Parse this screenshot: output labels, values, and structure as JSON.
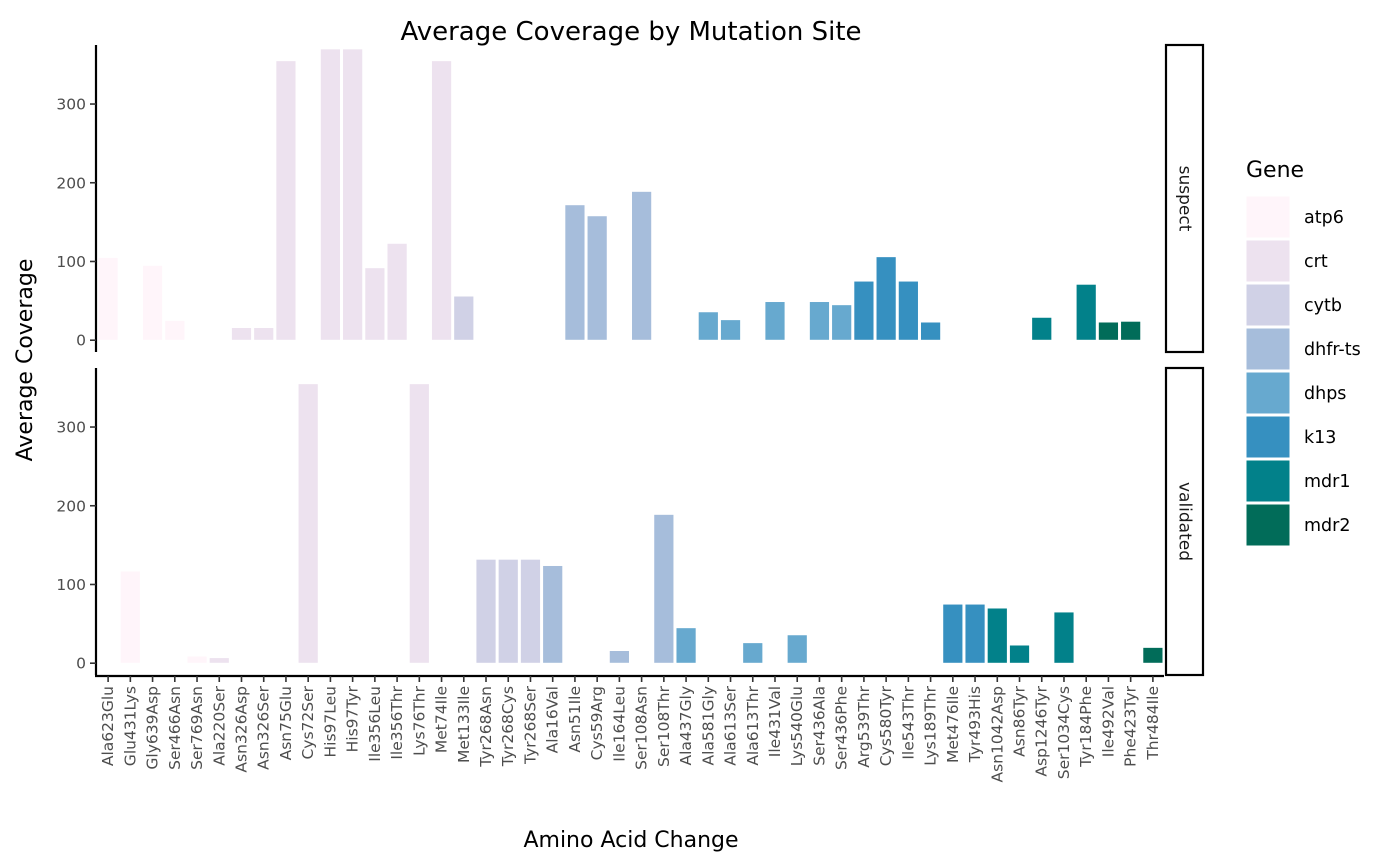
{
  "chart_data": {
    "type": "bar",
    "title": "Average Coverage by Mutation Site",
    "xlabel": "Amino Acid Change",
    "ylabel": "Average Coverage",
    "ylim": [
      -15,
      375
    ],
    "yticks": [
      0,
      100,
      200,
      300
    ],
    "grid": false,
    "legend": {
      "title": "Gene",
      "placement": "right",
      "entries": [
        {
          "name": "atp6",
          "color": "#fff5fa"
        },
        {
          "name": "crt",
          "color": "#ede2ef"
        },
        {
          "name": "cytb",
          "color": "#d0d1e6"
        },
        {
          "name": "dhfr-ts",
          "color": "#a6bddb"
        },
        {
          "name": "dhps",
          "color": "#67a9cf"
        },
        {
          "name": "k13",
          "color": "#3690c0"
        },
        {
          "name": "mdr1",
          "color": "#02818a"
        },
        {
          "name": "mdr2",
          "color": "#016c59"
        }
      ]
    },
    "categories": [
      "Ala623Glu",
      "Glu431Lys",
      "Gly639Asp",
      "Ser466Asn",
      "Ser769Asn",
      "Ala220Ser",
      "Asn326Asp",
      "Asn326Ser",
      "Asn75Glu",
      "Cys72Ser",
      "His97Leu",
      "His97Tyr",
      "Ile356Leu",
      "Ile356Thr",
      "Lys76Thr",
      "Met74Ile",
      "Met133Ile",
      "Tyr268Asn",
      "Tyr268Cys",
      "Tyr268Ser",
      "Ala16Val",
      "Asn51Ile",
      "Cys59Arg",
      "Ile164Leu",
      "Ser108Asn",
      "Ser108Thr",
      "Ala437Gly",
      "Ala581Gly",
      "Ala613Ser",
      "Ala613Thr",
      "Ile431Val",
      "Lys540Glu",
      "Ser436Ala",
      "Ser436Phe",
      "Arg539Thr",
      "Cys580Tyr",
      "Ile543Thr",
      "Lys189Thr",
      "Met476Ile",
      "Tyr493His",
      "Asn1042Asp",
      "Asn86Tyr",
      "Asp1246Tyr",
      "Ser1034Cys",
      "Tyr184Phe",
      "Ile492Val",
      "Phe423Tyr",
      "Thr484Ile"
    ],
    "panels": [
      {
        "name": "suspect",
        "bars": [
          {
            "category": "Ala623Glu",
            "value": 105,
            "gene": "atp6"
          },
          {
            "category": "Gly639Asp",
            "value": 95,
            "gene": "atp6"
          },
          {
            "category": "Ser466Asn",
            "value": 25,
            "gene": "atp6"
          },
          {
            "category": "Asn326Asp",
            "value": 16,
            "gene": "crt"
          },
          {
            "category": "Asn326Ser",
            "value": 16,
            "gene": "crt"
          },
          {
            "category": "Asn75Glu",
            "value": 355,
            "gene": "crt"
          },
          {
            "category": "His97Leu",
            "value": 370,
            "gene": "crt"
          },
          {
            "category": "His97Tyr",
            "value": 370,
            "gene": "crt"
          },
          {
            "category": "Ile356Leu",
            "value": 92,
            "gene": "crt"
          },
          {
            "category": "Ile356Thr",
            "value": 123,
            "gene": "crt"
          },
          {
            "category": "Met74Ile",
            "value": 355,
            "gene": "crt"
          },
          {
            "category": "Met133Ile",
            "value": 56,
            "gene": "cytb"
          },
          {
            "category": "Asn51Ile",
            "value": 172,
            "gene": "dhfr-ts"
          },
          {
            "category": "Cys59Arg",
            "value": 158,
            "gene": "dhfr-ts"
          },
          {
            "category": "Ser108Asn",
            "value": 189,
            "gene": "dhfr-ts"
          },
          {
            "category": "Ala581Gly",
            "value": 36,
            "gene": "dhps"
          },
          {
            "category": "Ala613Ser",
            "value": 26,
            "gene": "dhps"
          },
          {
            "category": "Ile431Val",
            "value": 49,
            "gene": "dhps"
          },
          {
            "category": "Ser436Ala",
            "value": 49,
            "gene": "dhps"
          },
          {
            "category": "Ser436Phe",
            "value": 45,
            "gene": "dhps"
          },
          {
            "category": "Arg539Thr",
            "value": 75,
            "gene": "k13"
          },
          {
            "category": "Cys580Tyr",
            "value": 106,
            "gene": "k13"
          },
          {
            "category": "Ile543Thr",
            "value": 75,
            "gene": "k13"
          },
          {
            "category": "Lys189Thr",
            "value": 23,
            "gene": "k13"
          },
          {
            "category": "Asp1246Tyr",
            "value": 29,
            "gene": "mdr1"
          },
          {
            "category": "Tyr184Phe",
            "value": 71,
            "gene": "mdr1"
          },
          {
            "category": "Ile492Val",
            "value": 23,
            "gene": "mdr2"
          },
          {
            "category": "Phe423Tyr",
            "value": 24,
            "gene": "mdr2"
          }
        ]
      },
      {
        "name": "validated",
        "bars": [
          {
            "category": "Glu431Lys",
            "value": 117,
            "gene": "atp6"
          },
          {
            "category": "Ser769Asn",
            "value": 9,
            "gene": "atp6"
          },
          {
            "category": "Ala220Ser",
            "value": 7,
            "gene": "crt"
          },
          {
            "category": "Cys72Ser",
            "value": 355,
            "gene": "crt"
          },
          {
            "category": "Lys76Thr",
            "value": 355,
            "gene": "crt"
          },
          {
            "category": "Tyr268Asn",
            "value": 132,
            "gene": "cytb"
          },
          {
            "category": "Tyr268Cys",
            "value": 132,
            "gene": "cytb"
          },
          {
            "category": "Tyr268Ser",
            "value": 132,
            "gene": "cytb"
          },
          {
            "category": "Ala16Val",
            "value": 124,
            "gene": "dhfr-ts"
          },
          {
            "category": "Ile164Leu",
            "value": 16,
            "gene": "dhfr-ts"
          },
          {
            "category": "Ser108Thr",
            "value": 189,
            "gene": "dhfr-ts"
          },
          {
            "category": "Ala437Gly",
            "value": 45,
            "gene": "dhps"
          },
          {
            "category": "Ala613Thr",
            "value": 26,
            "gene": "dhps"
          },
          {
            "category": "Lys540Glu",
            "value": 36,
            "gene": "dhps"
          },
          {
            "category": "Met476Ile",
            "value": 75,
            "gene": "k13"
          },
          {
            "category": "Tyr493His",
            "value": 75,
            "gene": "k13"
          },
          {
            "category": "Asn1042Asp",
            "value": 70,
            "gene": "mdr1"
          },
          {
            "category": "Asn86Tyr",
            "value": 23,
            "gene": "mdr1"
          },
          {
            "category": "Ser1034Cys",
            "value": 65,
            "gene": "mdr1"
          },
          {
            "category": "Thr484Ile",
            "value": 20,
            "gene": "mdr2"
          }
        ]
      }
    ]
  }
}
